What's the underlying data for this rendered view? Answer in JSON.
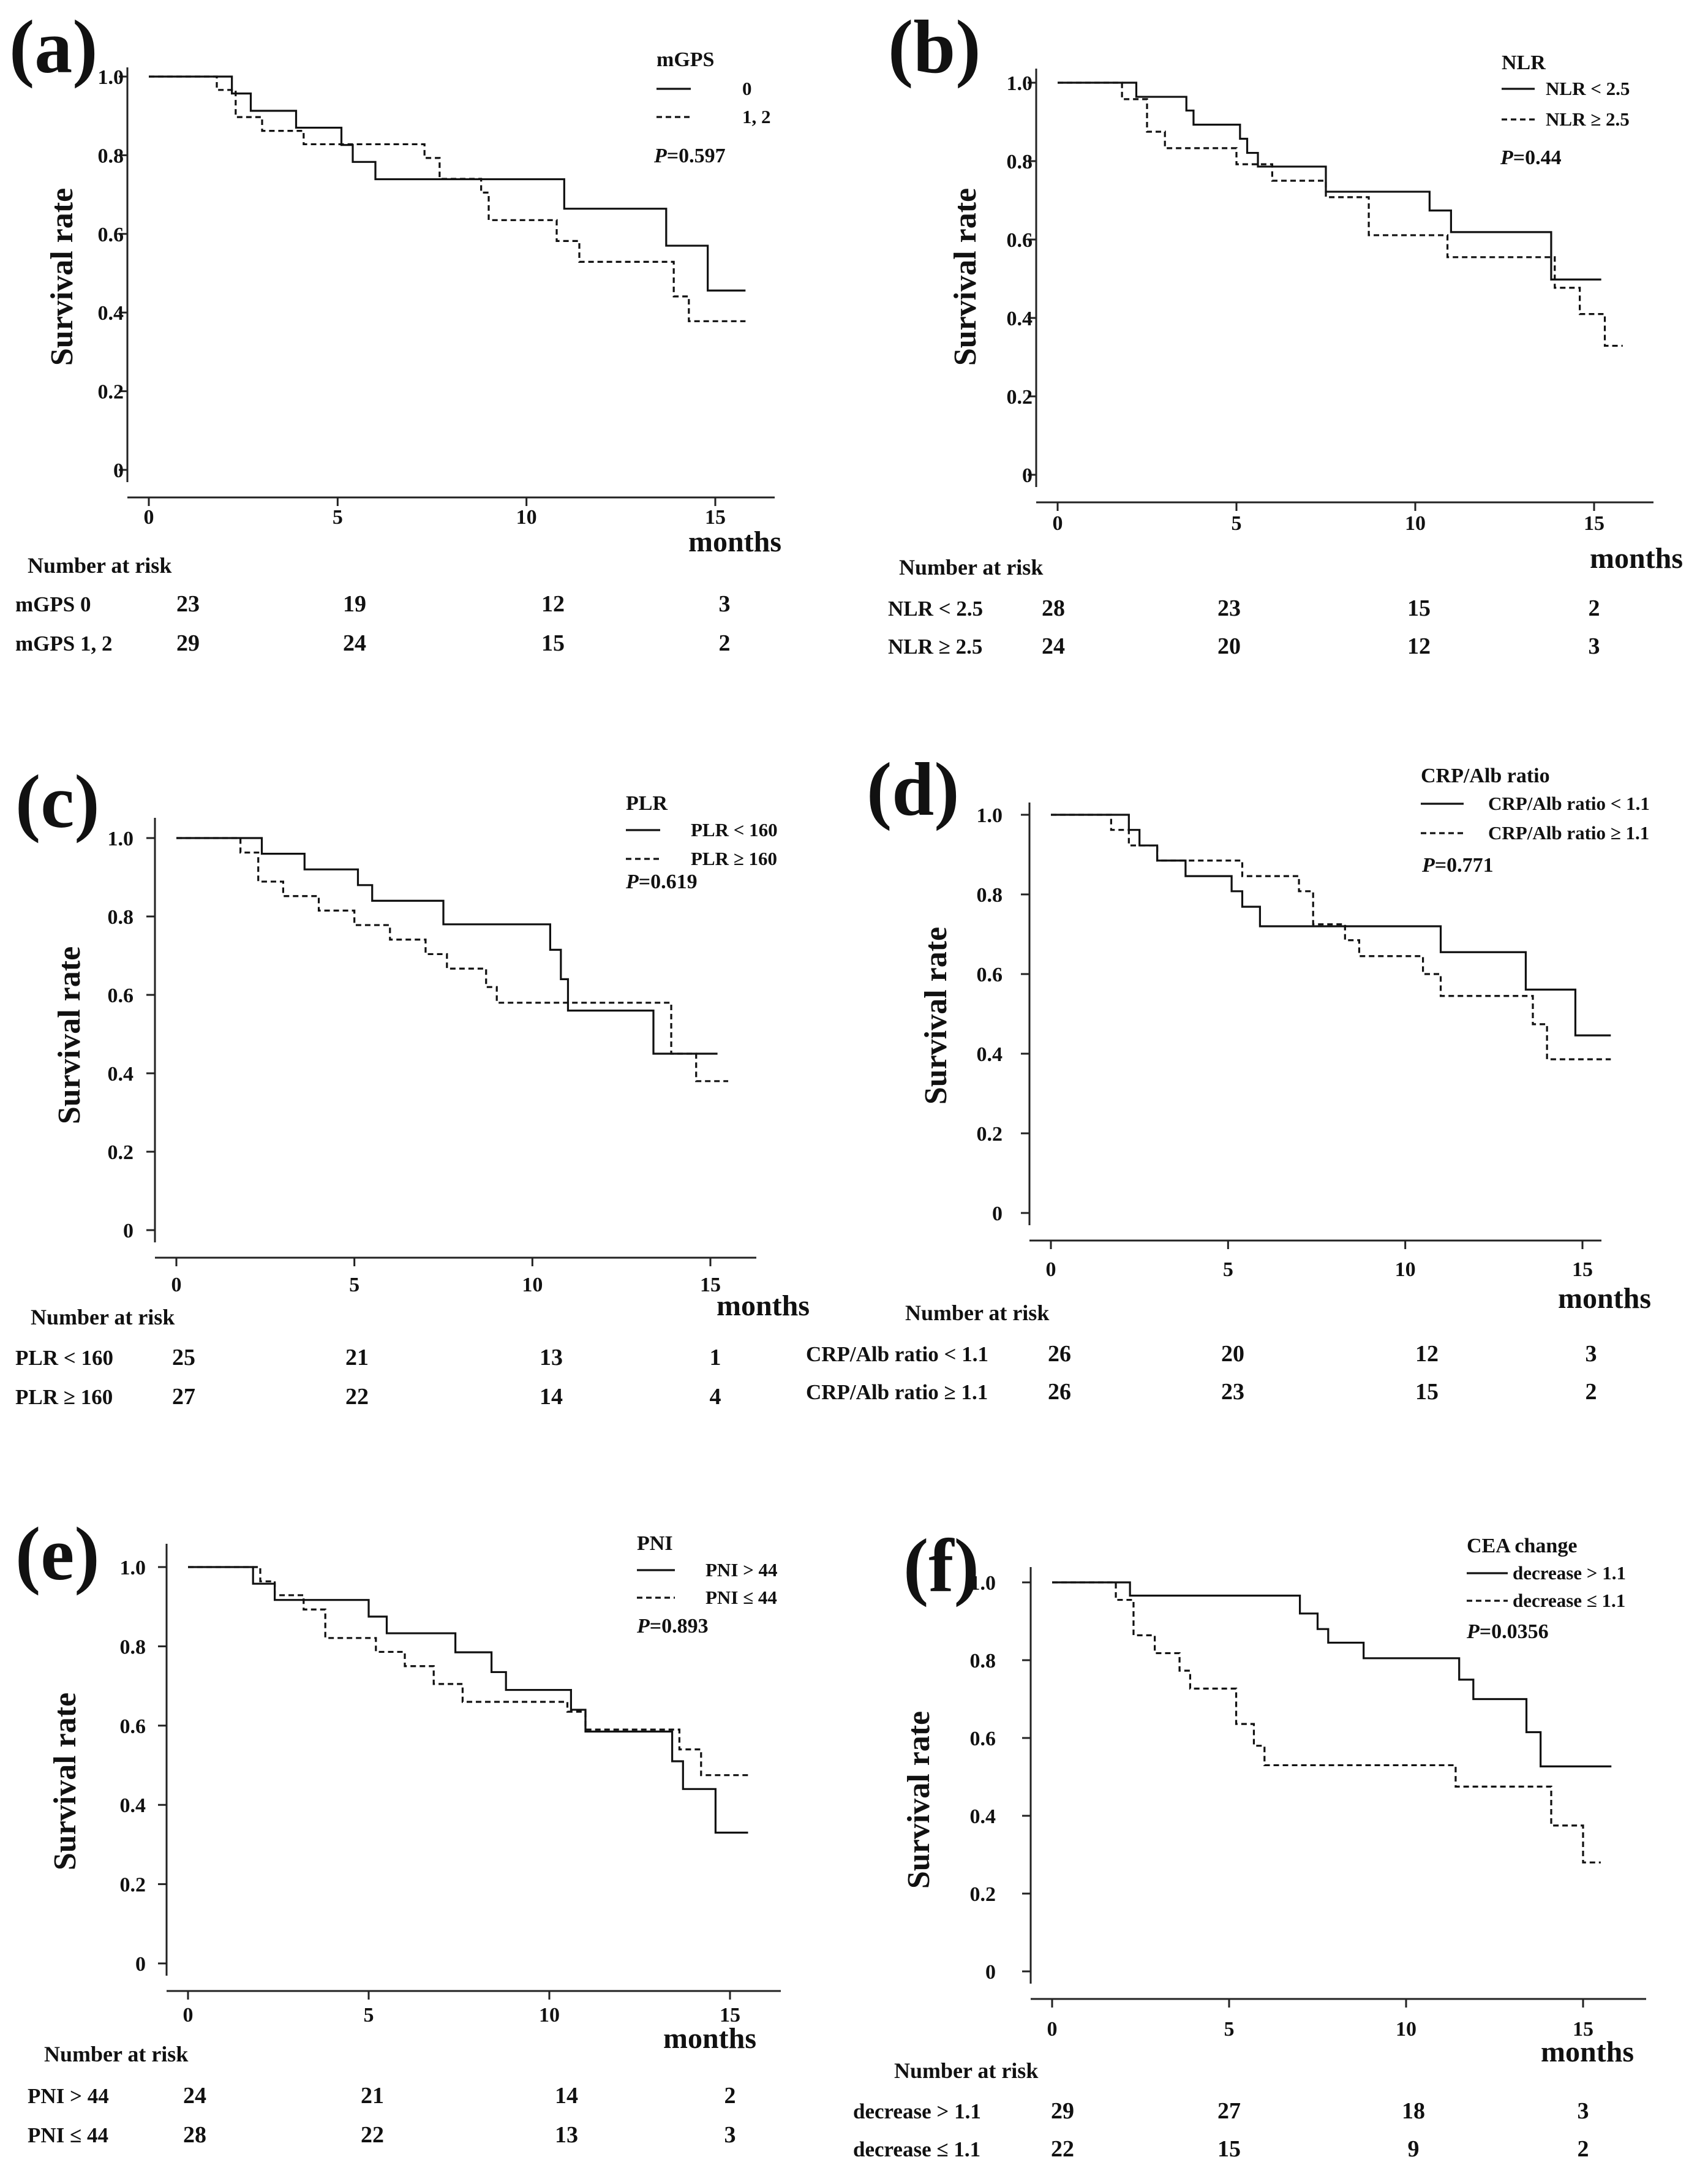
{
  "chart_data": [
    {
      "id": "a",
      "panel_label": "(a)",
      "type": "line",
      "subtype": "kaplan-meier",
      "xlabel": "months",
      "ylabel": "Survival rate",
      "x_ticks": [
        "0",
        "5",
        "10",
        "15"
      ],
      "y_ticks": [
        "0",
        "0.2",
        "0.4",
        "0.6",
        "0.8",
        "1.0"
      ],
      "xlim": [
        0,
        16
      ],
      "ylim": [
        0,
        1.0
      ],
      "legend_title": "mGPS",
      "p_label": "P",
      "p_value": "=0.597",
      "series": [
        {
          "name": "0",
          "style": "solid",
          "x": [
            0,
            2.2,
            2.7,
            3.9,
            5.1,
            5.4,
            6.0,
            11.0,
            13.7,
            14.8,
            15.8
          ],
          "y": [
            1.0,
            0.957,
            0.913,
            0.87,
            0.826,
            0.783,
            0.739,
            0.664,
            0.57,
            0.456,
            0.456
          ]
        },
        {
          "name": "1, 2",
          "style": "dashed",
          "x": [
            0,
            1.8,
            2.3,
            3.0,
            4.1,
            5.5,
            7.3,
            7.7,
            8.8,
            9.0,
            10.8,
            11.4,
            13.9,
            14.3,
            15.8
          ],
          "y": [
            1.0,
            0.966,
            0.897,
            0.862,
            0.828,
            0.828,
            0.793,
            0.74,
            0.705,
            0.635,
            0.582,
            0.529,
            0.441,
            0.378,
            0.378
          ]
        }
      ],
      "risk_table": {
        "header": "Number at risk",
        "rows": [
          {
            "label": "mGPS 0",
            "values": [
              "23",
              "19",
              "12",
              "3"
            ]
          },
          {
            "label": "mGPS 1, 2",
            "values": [
              "29",
              "24",
              "15",
              "2"
            ]
          }
        ]
      }
    },
    {
      "id": "b",
      "panel_label": "(b)",
      "type": "line",
      "subtype": "kaplan-meier",
      "xlabel": "months",
      "ylabel": "Survival rate",
      "x_ticks": [
        "0",
        "5",
        "10",
        "15"
      ],
      "y_ticks": [
        "0",
        "0.2",
        "0.4",
        "0.6",
        "0.8",
        "1.0"
      ],
      "xlim": [
        0,
        16
      ],
      "ylim": [
        0,
        1.0
      ],
      "legend_title": "NLR",
      "p_label": "P",
      "p_value": "=0.44",
      "series": [
        {
          "name": "NLR < 2.5",
          "style": "solid",
          "x": [
            0,
            2.2,
            3.6,
            3.8,
            5.1,
            5.3,
            5.6,
            7.5,
            10.4,
            11.0,
            13.8,
            15.2
          ],
          "y": [
            1.0,
            0.964,
            0.929,
            0.893,
            0.857,
            0.821,
            0.786,
            0.722,
            0.674,
            0.619,
            0.498,
            0.498
          ]
        },
        {
          "name": "NLR ≥ 2.5",
          "style": "dashed",
          "x": [
            0,
            1.8,
            2.5,
            3.0,
            5.0,
            6.0,
            7.5,
            8.7,
            10.9,
            13.9,
            14.6,
            15.3,
            15.8
          ],
          "y": [
            1.0,
            0.958,
            0.875,
            0.833,
            0.792,
            0.75,
            0.708,
            0.611,
            0.555,
            0.477,
            0.41,
            0.329,
            0.329
          ]
        }
      ],
      "risk_table": {
        "header": "Number at risk",
        "rows": [
          {
            "label": "NLR < 2.5",
            "values": [
              "28",
              "23",
              "15",
              "2"
            ]
          },
          {
            "label": "NLR ≥ 2.5",
            "values": [
              "24",
              "20",
              "12",
              "3"
            ]
          }
        ]
      }
    },
    {
      "id": "c",
      "panel_label": "(c)",
      "type": "line",
      "subtype": "kaplan-meier",
      "xlabel": "months",
      "ylabel": "Survival rate",
      "x_ticks": [
        "0",
        "5",
        "10",
        "15"
      ],
      "y_ticks": [
        "0",
        "0.2",
        "0.4",
        "0.6",
        "0.8",
        "1.0"
      ],
      "xlim": [
        0,
        16
      ],
      "ylim": [
        0,
        1.0
      ],
      "legend_title": "PLR",
      "p_label": "P",
      "p_value": "=0.619",
      "series": [
        {
          "name": "PLR < 160",
          "style": "solid",
          "x": [
            0,
            2.4,
            3.6,
            5.1,
            5.5,
            7.5,
            10.5,
            10.8,
            11.0,
            13.4,
            15.2
          ],
          "y": [
            1.0,
            0.96,
            0.92,
            0.88,
            0.84,
            0.78,
            0.715,
            0.64,
            0.56,
            0.45,
            0.45
          ]
        },
        {
          "name": "PLR ≥ 160",
          "style": "dashed",
          "x": [
            0,
            1.8,
            2.3,
            3.0,
            4.0,
            5.0,
            6.0,
            7.0,
            7.6,
            8.7,
            9.0,
            13.9,
            14.6,
            15.5
          ],
          "y": [
            1.0,
            0.963,
            0.889,
            0.852,
            0.815,
            0.778,
            0.741,
            0.704,
            0.667,
            0.62,
            0.58,
            0.45,
            0.38,
            0.38
          ]
        }
      ],
      "risk_table": {
        "header": "Number at risk",
        "rows": [
          {
            "label": "PLR < 160",
            "values": [
              "25",
              "21",
              "13",
              "1"
            ]
          },
          {
            "label": "PLR ≥ 160",
            "values": [
              "27",
              "22",
              "14",
              "4"
            ]
          }
        ]
      }
    },
    {
      "id": "d",
      "panel_label": "(d)",
      "type": "line",
      "subtype": "kaplan-meier",
      "xlabel": "months",
      "ylabel": "Survival rate",
      "x_ticks": [
        "0",
        "5",
        "10",
        "15"
      ],
      "y_ticks": [
        "0",
        "0.2",
        "0.4",
        "0.6",
        "0.8",
        "1.0"
      ],
      "xlim": [
        0,
        16
      ],
      "ylim": [
        0,
        1.0
      ],
      "legend_title": "CRP/Alb ratio",
      "p_label": "P",
      "p_value": "=0.771",
      "series": [
        {
          "name": "CRP/Alb ratio < 1.1",
          "style": "solid",
          "x": [
            0,
            2.2,
            2.5,
            3.0,
            3.8,
            5.1,
            5.4,
            5.9,
            11.0,
            13.4,
            14.8,
            15.8
          ],
          "y": [
            1.0,
            0.962,
            0.923,
            0.885,
            0.846,
            0.808,
            0.769,
            0.72,
            0.655,
            0.561,
            0.446,
            0.446
          ]
        },
        {
          "name": "CRP/Alb ratio ≥ 1.1",
          "style": "dashed",
          "x": [
            0,
            1.7,
            2.2,
            3.0,
            5.4,
            7.0,
            7.4,
            8.3,
            8.7,
            10.5,
            11.0,
            13.6,
            14.0,
            15.8
          ],
          "y": [
            1.0,
            0.962,
            0.923,
            0.885,
            0.846,
            0.808,
            0.725,
            0.685,
            0.645,
            0.6,
            0.545,
            0.474,
            0.386,
            0.386
          ]
        }
      ],
      "risk_table": {
        "header": "Number at risk",
        "rows": [
          {
            "label": "CRP/Alb ratio < 1.1",
            "values": [
              "26",
              "20",
              "12",
              "3"
            ]
          },
          {
            "label": "CRP/Alb ratio ≥ 1.1",
            "values": [
              "26",
              "23",
              "15",
              "2"
            ]
          }
        ]
      }
    },
    {
      "id": "e",
      "panel_label": "(e)",
      "type": "line",
      "subtype": "kaplan-meier",
      "xlabel": "months",
      "ylabel": "Survival rate",
      "x_ticks": [
        "0",
        "5",
        "10",
        "15"
      ],
      "y_ticks": [
        "0",
        "0.2",
        "0.4",
        "0.6",
        "0.8",
        "1.0"
      ],
      "xlim": [
        0,
        16
      ],
      "ylim": [
        0,
        1.0
      ],
      "legend_title": "PNI",
      "p_label": "P",
      "p_value": "=0.893",
      "series": [
        {
          "name": "PNI > 44",
          "style": "solid",
          "x": [
            0,
            1.8,
            2.4,
            5.0,
            5.5,
            7.4,
            8.4,
            8.8,
            10.6,
            11.0,
            13.4,
            13.7,
            14.6,
            15.5
          ],
          "y": [
            1.0,
            0.958,
            0.917,
            0.875,
            0.833,
            0.785,
            0.735,
            0.69,
            0.64,
            0.585,
            0.51,
            0.44,
            0.33,
            0.33
          ]
        },
        {
          "name": "PNI ≤ 44",
          "style": "dashed",
          "x": [
            0,
            2.0,
            2.4,
            3.2,
            3.8,
            5.2,
            6.0,
            6.8,
            7.6,
            10.5,
            11.0,
            13.6,
            14.2,
            15.5
          ],
          "y": [
            1.0,
            0.964,
            0.929,
            0.893,
            0.821,
            0.786,
            0.75,
            0.705,
            0.66,
            0.635,
            0.59,
            0.54,
            0.475,
            0.475
          ]
        }
      ],
      "risk_table": {
        "header": "Number at risk",
        "rows": [
          {
            "label": "PNI > 44",
            "values": [
              "24",
              "21",
              "14",
              "2"
            ]
          },
          {
            "label": "PNI ≤ 44",
            "values": [
              "28",
              "22",
              "13",
              "3"
            ]
          }
        ]
      }
    },
    {
      "id": "f",
      "panel_label": "(f)",
      "type": "line",
      "subtype": "kaplan-meier",
      "xlabel": "months",
      "ylabel": "Survival rate",
      "x_ticks": [
        "0",
        "5",
        "10",
        "15"
      ],
      "y_ticks": [
        "0",
        "0.2",
        "0.4",
        "0.6",
        "0.8",
        "1.0"
      ],
      "xlim": [
        0,
        16
      ],
      "ylim": [
        0,
        1.0
      ],
      "legend_title": "CEA change",
      "p_label": "P",
      "p_value": "=0.0356",
      "series": [
        {
          "name": "decrease > 1.1",
          "style": "solid",
          "x": [
            0,
            2.2,
            7.0,
            7.5,
            7.8,
            8.8,
            11.5,
            11.9,
            13.4,
            13.8,
            15.8
          ],
          "y": [
            1.0,
            0.966,
            0.92,
            0.88,
            0.845,
            0.805,
            0.75,
            0.7,
            0.615,
            0.527,
            0.527
          ]
        },
        {
          "name": "decrease ≤ 1.1",
          "style": "dashed",
          "x": [
            0,
            1.8,
            2.3,
            2.9,
            3.6,
            3.9,
            5.2,
            5.7,
            6.0,
            11.4,
            14.1,
            15.0,
            15.5
          ],
          "y": [
            1.0,
            0.955,
            0.864,
            0.818,
            0.773,
            0.727,
            0.636,
            0.58,
            0.53,
            0.475,
            0.375,
            0.28,
            0.28
          ]
        }
      ],
      "risk_table": {
        "header": "Number at risk",
        "rows": [
          {
            "label": "decrease > 1.1",
            "values": [
              "29",
              "27",
              "18",
              "3"
            ]
          },
          {
            "label": "decrease ≤ 1.1",
            "values": [
              "22",
              "15",
              "9",
              "2"
            ]
          }
        ]
      }
    }
  ]
}
